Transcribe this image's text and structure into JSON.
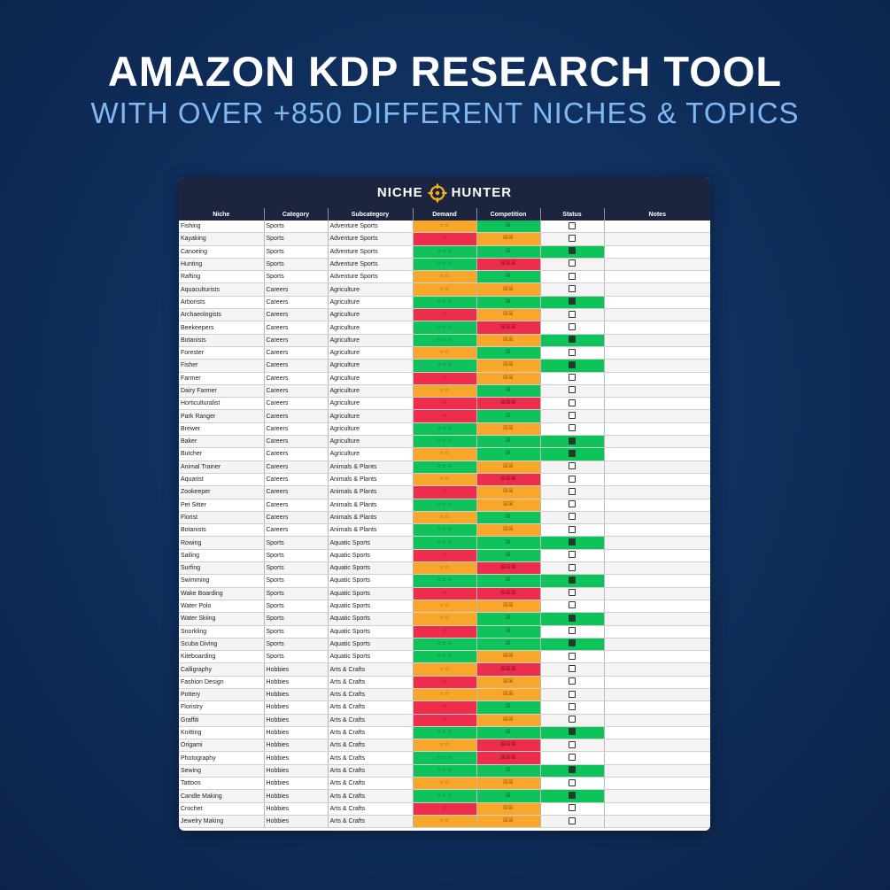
{
  "headline": "AMAZON KDP RESEARCH TOOL",
  "subheadline": "WITH OVER +850 DIFFERENT NICHES & TOPICS",
  "sheet": {
    "brand_left": "NICHE",
    "brand_right": "HUNTER",
    "brand_icon": "crosshair-icon",
    "columns": [
      "Niche",
      "Category",
      "Subcategory",
      "Demand",
      "Competition",
      "Status",
      "Notes"
    ],
    "colors": {
      "high": "#0fc35b",
      "medium": "#f9a72a",
      "low": "#ee2c4b"
    },
    "rows": [
      {
        "niche": "Fishing",
        "category": "Sports",
        "subcategory": "Adventure Sports",
        "demand": 2,
        "competition": 1,
        "status": false
      },
      {
        "niche": "Kayaking",
        "category": "Sports",
        "subcategory": "Adventure Sports",
        "demand": 1,
        "competition": 2,
        "status": false
      },
      {
        "niche": "Canoeing",
        "category": "Sports",
        "subcategory": "Adventure Sports",
        "demand": 3,
        "competition": 1,
        "status": true
      },
      {
        "niche": "Hunting",
        "category": "Sports",
        "subcategory": "Adventure Sports",
        "demand": 3,
        "competition": 3,
        "status": false
      },
      {
        "niche": "Rafting",
        "category": "Sports",
        "subcategory": "Adventure Sports",
        "demand": 2,
        "competition": 1,
        "status": false
      },
      {
        "niche": "Aquaculturists",
        "category": "Careers",
        "subcategory": "Agriculture",
        "demand": 2,
        "competition": 2,
        "status": false
      },
      {
        "niche": "Arborists",
        "category": "Careers",
        "subcategory": "Agriculture",
        "demand": 3,
        "competition": 1,
        "status": true
      },
      {
        "niche": "Archaeologists",
        "category": "Careers",
        "subcategory": "Agriculture",
        "demand": 1,
        "competition": 2,
        "status": false
      },
      {
        "niche": "Beekeepers",
        "category": "Careers",
        "subcategory": "Agriculture",
        "demand": 3,
        "competition": 3,
        "status": false
      },
      {
        "niche": "Botanists",
        "category": "Careers",
        "subcategory": "Agriculture",
        "demand": 3,
        "competition": 2,
        "status": true
      },
      {
        "niche": "Forester",
        "category": "Careers",
        "subcategory": "Agriculture",
        "demand": 2,
        "competition": 1,
        "status": false
      },
      {
        "niche": "Fisher",
        "category": "Careers",
        "subcategory": "Agriculture",
        "demand": 3,
        "competition": 2,
        "status": true
      },
      {
        "niche": "Farmer",
        "category": "Careers",
        "subcategory": "Agriculture",
        "demand": 1,
        "competition": 2,
        "status": false
      },
      {
        "niche": "Dairy Farmer",
        "category": "Careers",
        "subcategory": "Agriculture",
        "demand": 2,
        "competition": 1,
        "status": false
      },
      {
        "niche": "Horticulturalist",
        "category": "Careers",
        "subcategory": "Agriculture",
        "demand": 1,
        "competition": 3,
        "status": false
      },
      {
        "niche": "Park Ranger",
        "category": "Careers",
        "subcategory": "Agriculture",
        "demand": 1,
        "competition": 1,
        "status": false
      },
      {
        "niche": "Brewer",
        "category": "Careers",
        "subcategory": "Agriculture",
        "demand": 3,
        "competition": 2,
        "status": false
      },
      {
        "niche": "Baker",
        "category": "Careers",
        "subcategory": "Agriculture",
        "demand": 3,
        "competition": 1,
        "status": true
      },
      {
        "niche": "Butcher",
        "category": "Careers",
        "subcategory": "Agriculture",
        "demand": 2,
        "competition": 1,
        "status": true
      },
      {
        "niche": "Animal Trainer",
        "category": "Careers",
        "subcategory": "Animals & Plants",
        "demand": 3,
        "competition": 2,
        "status": false
      },
      {
        "niche": "Aquarist",
        "category": "Careers",
        "subcategory": "Animals & Plants",
        "demand": 2,
        "competition": 3,
        "status": false
      },
      {
        "niche": "Zookeeper",
        "category": "Careers",
        "subcategory": "Animals & Plants",
        "demand": 1,
        "competition": 2,
        "status": false
      },
      {
        "niche": "Pet Sitter",
        "category": "Careers",
        "subcategory": "Animals & Plants",
        "demand": 3,
        "competition": 2,
        "status": false
      },
      {
        "niche": "Florist",
        "category": "Careers",
        "subcategory": "Animals & Plants",
        "demand": 2,
        "competition": 1,
        "status": false
      },
      {
        "niche": "Botanists",
        "category": "Careers",
        "subcategory": "Animals & Plants",
        "demand": 3,
        "competition": 2,
        "status": false
      },
      {
        "niche": "Rowing",
        "category": "Sports",
        "subcategory": "Aquatic Sports",
        "demand": 3,
        "competition": 1,
        "status": true
      },
      {
        "niche": "Sailing",
        "category": "Sports",
        "subcategory": "Aquatic Sports",
        "demand": 1,
        "competition": 1,
        "status": false
      },
      {
        "niche": "Surfing",
        "category": "Sports",
        "subcategory": "Aquatic Sports",
        "demand": 2,
        "competition": 3,
        "status": false
      },
      {
        "niche": "Swimming",
        "category": "Sports",
        "subcategory": "Aquatic Sports",
        "demand": 3,
        "competition": 1,
        "status": true
      },
      {
        "niche": "Wake Boarding",
        "category": "Sports",
        "subcategory": "Aquatic Sports",
        "demand": 1,
        "competition": 3,
        "status": false
      },
      {
        "niche": "Water Polo",
        "category": "Sports",
        "subcategory": "Aquatic Sports",
        "demand": 2,
        "competition": 2,
        "status": false
      },
      {
        "niche": "Water Skiing",
        "category": "Sports",
        "subcategory": "Aquatic Sports",
        "demand": 2,
        "competition": 1,
        "status": true
      },
      {
        "niche": "Snorkling",
        "category": "Sports",
        "subcategory": "Aquatic Sports",
        "demand": 1,
        "competition": 1,
        "status": false
      },
      {
        "niche": "Scuba Diving",
        "category": "Sports",
        "subcategory": "Aquatic Sports",
        "demand": 3,
        "competition": 1,
        "status": true
      },
      {
        "niche": "Kiteboarding",
        "category": "Sports",
        "subcategory": "Aquatic Sports",
        "demand": 3,
        "competition": 2,
        "status": false
      },
      {
        "niche": "Calligraphy",
        "category": "Hobbies",
        "subcategory": "Arts & Crafts",
        "demand": 2,
        "competition": 3,
        "status": false
      },
      {
        "niche": "Fashion Design",
        "category": "Hobbies",
        "subcategory": "Arts & Crafts",
        "demand": 1,
        "competition": 2,
        "status": false
      },
      {
        "niche": "Pottery",
        "category": "Hobbies",
        "subcategory": "Arts & Crafts",
        "demand": 2,
        "competition": 2,
        "status": false
      },
      {
        "niche": "Floristry",
        "category": "Hobbies",
        "subcategory": "Arts & Crafts",
        "demand": 1,
        "competition": 1,
        "status": false
      },
      {
        "niche": "Graffiti",
        "category": "Hobbies",
        "subcategory": "Arts & Crafts",
        "demand": 1,
        "competition": 2,
        "status": false
      },
      {
        "niche": "Knitting",
        "category": "Hobbies",
        "subcategory": "Arts & Crafts",
        "demand": 3,
        "competition": 1,
        "status": true
      },
      {
        "niche": "Origami",
        "category": "Hobbies",
        "subcategory": "Arts & Crafts",
        "demand": 2,
        "competition": 3,
        "status": false
      },
      {
        "niche": "Photography",
        "category": "Hobbies",
        "subcategory": "Arts & Crafts",
        "demand": 3,
        "competition": 3,
        "status": false
      },
      {
        "niche": "Sewing",
        "category": "Hobbies",
        "subcategory": "Arts & Crafts",
        "demand": 3,
        "competition": 1,
        "status": true
      },
      {
        "niche": "Tattoos",
        "category": "Hobbies",
        "subcategory": "Arts & Crafts",
        "demand": 2,
        "competition": 2,
        "status": false
      },
      {
        "niche": "Candle Making",
        "category": "Hobbies",
        "subcategory": "Arts & Crafts",
        "demand": 3,
        "competition": 1,
        "status": true
      },
      {
        "niche": "Crochet",
        "category": "Hobbies",
        "subcategory": "Arts & Crafts",
        "demand": 1,
        "competition": 2,
        "status": false
      },
      {
        "niche": "Jewelry Making",
        "category": "Hobbies",
        "subcategory": "Arts & Crafts",
        "demand": 2,
        "competition": 2,
        "status": false
      }
    ]
  }
}
